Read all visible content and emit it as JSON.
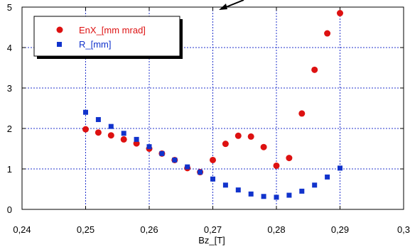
{
  "chart_data": {
    "type": "scatter",
    "title": "",
    "xlabel": "Bz_[T]",
    "ylabel": "",
    "xlim": [
      0.24,
      0.3
    ],
    "ylim": [
      0,
      5
    ],
    "x_ticks": [
      {
        "value": 0.24,
        "label": "0,24"
      },
      {
        "value": 0.25,
        "label": "0,25"
      },
      {
        "value": 0.26,
        "label": "0,26"
      },
      {
        "value": 0.27,
        "label": "0,27"
      },
      {
        "value": 0.28,
        "label": "0,28"
      },
      {
        "value": 0.29,
        "label": "0,29"
      },
      {
        "value": 0.3,
        "label": "0,3"
      }
    ],
    "y_ticks": [
      {
        "value": 0,
        "label": "0"
      },
      {
        "value": 1,
        "label": "1"
      },
      {
        "value": 2,
        "label": "2"
      },
      {
        "value": 3,
        "label": "3"
      },
      {
        "value": 4,
        "label": "4"
      },
      {
        "value": 5,
        "label": "5"
      }
    ],
    "grid": true,
    "legend_position": "top-left",
    "series": [
      {
        "name": "EnX_[mm mrad]",
        "marker": "circle",
        "color": "#dd1111",
        "x": [
          0.25,
          0.252,
          0.254,
          0.256,
          0.258,
          0.26,
          0.262,
          0.264,
          0.266,
          0.268,
          0.27,
          0.272,
          0.274,
          0.276,
          0.278,
          0.28,
          0.282,
          0.284,
          0.286,
          0.288,
          0.29
        ],
        "y": [
          1.98,
          1.9,
          1.83,
          1.73,
          1.63,
          1.5,
          1.38,
          1.22,
          1.02,
          0.92,
          1.22,
          1.62,
          1.82,
          1.8,
          1.54,
          1.08,
          1.27,
          2.37,
          3.45,
          4.35,
          4.85
        ]
      },
      {
        "name": "R_[mm]",
        "marker": "square",
        "color": "#1133cc",
        "x": [
          0.25,
          0.252,
          0.254,
          0.256,
          0.258,
          0.26,
          0.262,
          0.264,
          0.266,
          0.268,
          0.27,
          0.272,
          0.274,
          0.276,
          0.278,
          0.28,
          0.282,
          0.284,
          0.286,
          0.288,
          0.29
        ],
        "y": [
          2.4,
          2.22,
          2.05,
          1.88,
          1.73,
          1.55,
          1.38,
          1.22,
          1.05,
          0.92,
          0.75,
          0.6,
          0.48,
          0.38,
          0.32,
          0.3,
          0.35,
          0.45,
          0.6,
          0.8,
          1.02
        ]
      }
    ]
  }
}
